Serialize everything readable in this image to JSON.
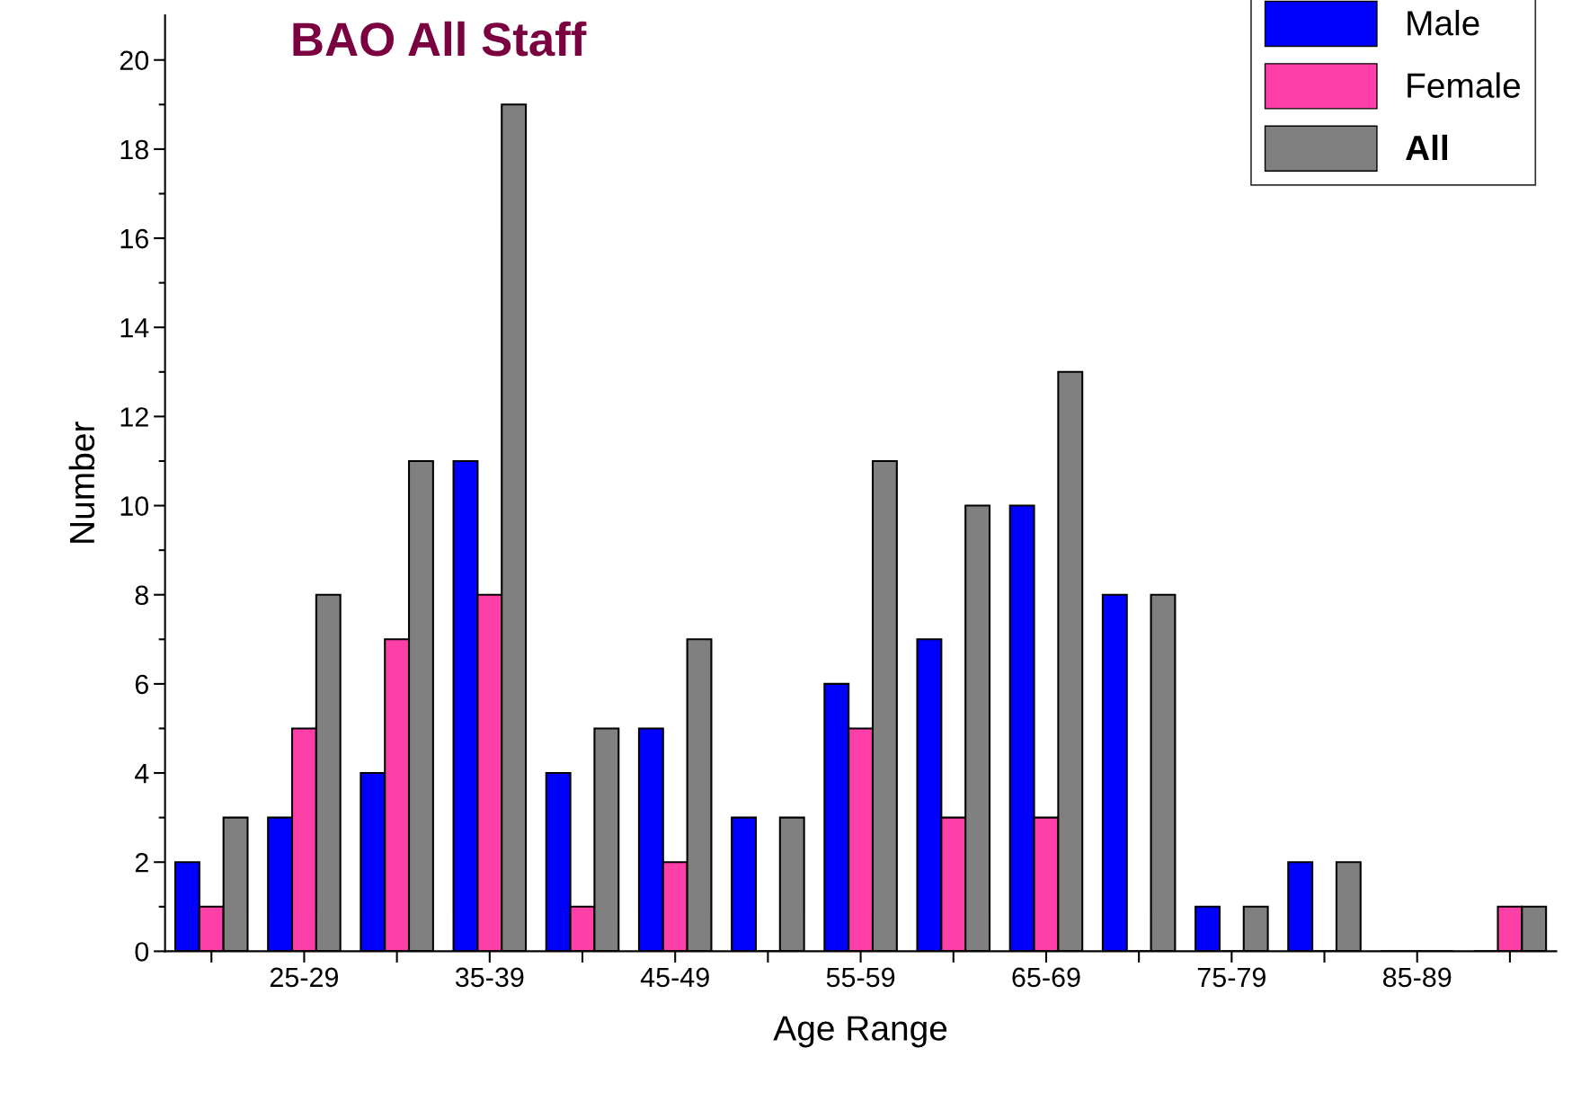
{
  "chart_data": {
    "type": "bar",
    "title": "BAO All Staff",
    "xlabel": "Age Range",
    "ylabel": "Number",
    "categories": [
      null,
      "25-29",
      null,
      "35-39",
      null,
      "45-49",
      null,
      "55-59",
      null,
      "65-69",
      null,
      "75-79",
      null,
      "85-89",
      null
    ],
    "series": [
      {
        "name": "Male",
        "color": "#0000ff",
        "values": [
          2,
          3,
          4,
          11,
          4,
          5,
          3,
          6,
          7,
          10,
          8,
          1,
          2,
          0,
          0
        ]
      },
      {
        "name": "Female",
        "color": "#ff3fa8",
        "values": [
          1,
          5,
          7,
          8,
          1,
          2,
          0,
          5,
          3,
          3,
          0,
          0,
          0,
          0,
          1
        ]
      },
      {
        "name": "All",
        "color": "#808080",
        "values": [
          3,
          8,
          11,
          19,
          5,
          7,
          3,
          11,
          10,
          13,
          8,
          1,
          2,
          0,
          1
        ]
      }
    ],
    "ylim": [
      0,
      21
    ],
    "yticks": [
      0,
      2,
      4,
      6,
      8,
      10,
      12,
      14,
      16,
      18,
      20
    ],
    "legend": "top right",
    "grid": false
  }
}
